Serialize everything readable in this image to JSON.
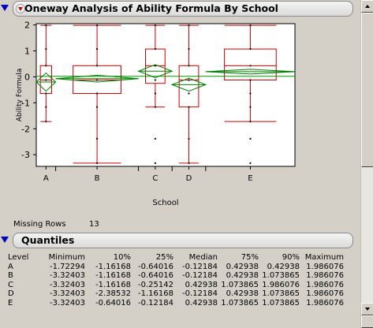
{
  "report": {
    "title": "Oneway Analysis of Ability Formula By School",
    "missing_rows_label": "Missing Rows",
    "missing_rows_value": "13"
  },
  "quantiles": {
    "title": "Quantiles",
    "headers": [
      "Level",
      "Minimum",
      "10%",
      "25%",
      "Median",
      "75%",
      "90%",
      "Maximum"
    ],
    "rows": [
      [
        "A",
        "-1.72294",
        "-1.16168",
        "-0.64016",
        "-0.12184",
        "0.42938",
        "0.42938",
        "1.986076"
      ],
      [
        "B",
        "-3.32403",
        "-1.16168",
        "-0.64016",
        "-0.12184",
        "0.42938",
        "1.073865",
        "1.986076"
      ],
      [
        "C",
        "-3.32403",
        "-1.16168",
        "-0.25142",
        "0.42938",
        "1.073865",
        "1.986076",
        "1.986076"
      ],
      [
        "D",
        "-3.32403",
        "-2.38532",
        "-1.16168",
        "-0.12184",
        "0.42938",
        "1.073865",
        "1.986076"
      ],
      [
        "E",
        "-3.32403",
        "-0.64016",
        "-0.12184",
        "0.42938",
        "1.073865",
        "1.073865",
        "1.986076"
      ]
    ]
  },
  "colors": {
    "box": "#cc0000",
    "diamond": "#008000",
    "grand_mean": "#009900",
    "points": "#000000"
  },
  "chart_data": {
    "type": "box",
    "xlabel": "School",
    "ylabel": "Ability Formula",
    "ylim": [
      -3.45,
      2.05
    ],
    "yticks": [
      2,
      1,
      0,
      -1,
      -2,
      -3
    ],
    "grid": false,
    "grand_mean": 0.02,
    "groups": [
      {
        "name": "A",
        "x_start": 0.0,
        "x_end": 0.075,
        "min": -1.72294,
        "q1": -0.64016,
        "median": -0.12184,
        "q3": 0.42938,
        "max": 1.986076,
        "mean": -0.2,
        "ci": [
          -0.55,
          0.15
        ],
        "points": [
          1.986076,
          1.073865,
          0.42938,
          -0.12184,
          -0.64016,
          -1.16168,
          -1.72294
        ]
      },
      {
        "name": "B",
        "x_start": 0.075,
        "x_end": 0.395,
        "min": -3.32403,
        "q1": -0.64016,
        "median": -0.12184,
        "q3": 0.42938,
        "max": 1.986076,
        "mean": -0.07,
        "ci": [
          -0.2,
          0.06
        ],
        "points": [
          1.986076,
          1.073865,
          0.42938,
          -0.12184,
          -0.64016,
          -1.16168,
          -2.38532,
          -3.32403
        ]
      },
      {
        "name": "C",
        "x_start": 0.395,
        "x_end": 0.525,
        "min": -1.16168,
        "q1": -0.25142,
        "median": 0.42938,
        "q3": 1.073865,
        "max": 1.986076,
        "mean": 0.22,
        "ci": [
          -0.03,
          0.47
        ],
        "points": [
          1.986076,
          1.073865,
          0.42938,
          -0.12184,
          -0.64016,
          -1.16168,
          -2.38532,
          -3.32403
        ]
      },
      {
        "name": "D",
        "x_start": 0.525,
        "x_end": 0.655,
        "min": -3.32403,
        "q1": -1.16168,
        "median": -0.12184,
        "q3": 0.42938,
        "max": 1.986076,
        "mean": -0.3,
        "ci": [
          -0.55,
          -0.05
        ],
        "points": [
          1.986076,
          1.073865,
          0.42938,
          -0.12184,
          -0.64016,
          -1.16168,
          -2.38532,
          -3.32403
        ]
      },
      {
        "name": "E",
        "x_start": 0.655,
        "x_end": 1.0,
        "min": -1.72294,
        "q1": -0.12184,
        "median": 0.42938,
        "q3": 1.073865,
        "max": 1.986076,
        "mean": 0.2,
        "ci": [
          0.11,
          0.29
        ],
        "points": [
          1.986076,
          1.073865,
          0.42938,
          -0.12184,
          -0.64016,
          -1.16168,
          -1.72294,
          -2.38532,
          -3.32403
        ]
      }
    ]
  }
}
